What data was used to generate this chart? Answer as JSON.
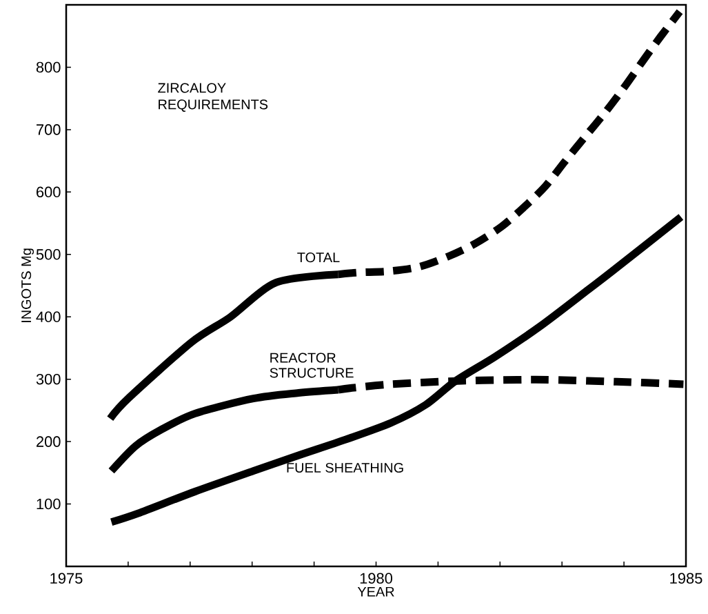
{
  "chart_data": {
    "type": "line",
    "title": "ZIRCALOY REQUIREMENTS",
    "xlabel": "YEAR",
    "ylabel": "INGOTS Mg",
    "xlim": [
      1975,
      1985
    ],
    "ylim": [
      0,
      900
    ],
    "xticks": [
      1975,
      {
        "value": 1976,
        "label": null
      },
      {
        "value": 1977,
        "label": null
      },
      {
        "value": 1978,
        "label": null
      },
      {
        "value": 1979,
        "label": null
      },
      1980,
      {
        "value": 1981,
        "label": null
      },
      {
        "value": 1982,
        "label": null
      },
      {
        "value": 1983,
        "label": null
      },
      {
        "value": 1984,
        "label": null
      },
      1985
    ],
    "yticks": [
      100,
      200,
      300,
      400,
      500,
      600,
      700,
      800
    ],
    "series": [
      {
        "name": "TOTAL",
        "color": "#000000",
        "line_style": "solid",
        "x": [
          1975.71,
          1976.01,
          1977.02,
          1977.64,
          1978.39,
          1979.39
        ],
        "values": [
          237,
          270,
          359,
          399,
          455,
          468
        ]
      },
      {
        "color": "#000000",
        "line_style": "dashed",
        "x": [
          1979.39,
          1979.72,
          1980.2,
          1980.69,
          1981.17,
          1981.61,
          1982.03,
          1982.39,
          1982.73,
          1983.04,
          1983.36,
          1983.7,
          1983.99,
          1984.29,
          1984.59,
          1984.9
        ],
        "values": [
          468,
          471,
          473,
          480,
          497,
          518,
          545,
          576,
          609,
          648,
          687,
          728,
          766,
          808,
          849,
          889
        ]
      },
      {
        "name": "REACTOR STRUCTURE",
        "color": "#000000",
        "line_style": "solid",
        "x": [
          1975.73,
          1976.12,
          1976.53,
          1977.08,
          1978.02,
          1978.75,
          1979.39
        ],
        "values": [
          153,
          193,
          219,
          245,
          269,
          278,
          283
        ]
      },
      {
        "color": "#000000",
        "line_style": "dashed",
        "x": [
          1979.39,
          1979.61,
          1980.24,
          1981.25,
          1982.28,
          1982.84,
          1983.88,
          1984.96
        ],
        "values": [
          283,
          286,
          292,
          297,
          299,
          299,
          296,
          292
        ]
      },
      {
        "name": "FUEL SHEATHING",
        "color": "#000000",
        "line_style": "solid",
        "x": [
          1975.73,
          1976.16,
          1977.08,
          1978.02,
          1978.75,
          1979.5,
          1980.24,
          1980.8,
          1981.28,
          1981.92,
          1982.65,
          1983.43,
          1983.81,
          1984.92
        ],
        "values": [
          71,
          85,
          120,
          153,
          178,
          203,
          230,
          259,
          297,
          336,
          385,
          444,
          473,
          560
        ]
      }
    ]
  }
}
